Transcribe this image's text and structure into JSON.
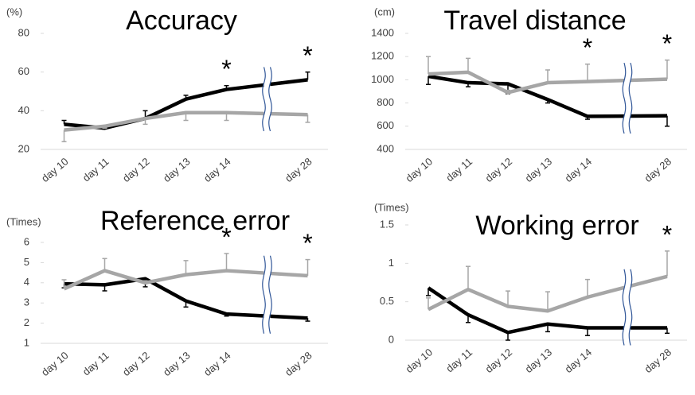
{
  "chart_data": [
    {
      "type": "line",
      "title": "Accuracy",
      "y_label": "(%)",
      "categories": [
        "day 10",
        "day 11",
        "day 12",
        "day 13",
        "day 14",
        "day 28"
      ],
      "axis_break_before_last": true,
      "ylim": [
        20,
        80
      ],
      "yticks": [
        20,
        40,
        60,
        80
      ],
      "series": [
        {
          "color": "#000000",
          "values": [
            33,
            31,
            36,
            46,
            51,
            56
          ],
          "errors": [
            2,
            1,
            4,
            2,
            2,
            4
          ],
          "error_side": "up"
        },
        {
          "color": "#a6a6a6",
          "values": [
            30,
            32,
            36,
            39,
            39,
            38
          ],
          "errors": [
            6,
            1,
            3,
            4,
            4,
            4
          ],
          "error_side": "down"
        }
      ],
      "annotations": [
        {
          "text": "*",
          "x": "day 14"
        },
        {
          "text": "*",
          "x": "day 28"
        }
      ]
    },
    {
      "type": "line",
      "title": "Travel distance",
      "y_label": "(cm)",
      "categories": [
        "day 10",
        "day 11",
        "day 12",
        "day 13",
        "day 14",
        "day 28"
      ],
      "axis_break_before_last": true,
      "ylim": [
        400,
        1400
      ],
      "yticks": [
        400,
        600,
        800,
        1000,
        1200,
        1400
      ],
      "series": [
        {
          "color": "#000000",
          "values": [
            1030,
            975,
            965,
            830,
            685,
            690
          ],
          "errors": [
            70,
            35,
            85,
            30,
            25,
            90
          ],
          "error_side": "down"
        },
        {
          "color": "#a6a6a6",
          "values": [
            1050,
            1065,
            890,
            975,
            985,
            1005
          ],
          "errors": [
            150,
            120,
            20,
            110,
            150,
            165
          ],
          "error_side": "up"
        }
      ],
      "annotations": [
        {
          "text": "*",
          "x": "day 14"
        },
        {
          "text": "*",
          "x": "day 28"
        }
      ]
    },
    {
      "type": "line",
      "title": "Reference error",
      "y_label": "(Times)",
      "categories": [
        "day 10",
        "day 11",
        "day 12",
        "day 13",
        "day 14",
        "day 28"
      ],
      "axis_break_before_last": true,
      "ylim": [
        1,
        6
      ],
      "yticks": [
        1,
        2,
        3,
        4,
        5,
        6
      ],
      "series": [
        {
          "color": "#000000",
          "values": [
            3.95,
            3.9,
            4.2,
            3.1,
            2.45,
            2.25
          ],
          "errors": [
            0.2,
            0.3,
            0.4,
            0.3,
            0.1,
            0.15
          ],
          "error_side": "down"
        },
        {
          "color": "#a6a6a6",
          "values": [
            3.7,
            4.6,
            4.0,
            4.4,
            4.6,
            4.35
          ],
          "errors": [
            0.45,
            0.6,
            0.1,
            0.7,
            0.85,
            0.8
          ],
          "error_side": "up"
        }
      ],
      "annotations": [
        {
          "text": "*",
          "x": "day 14"
        },
        {
          "text": "*",
          "x": "day 28"
        }
      ]
    },
    {
      "type": "line",
      "title": "Working error",
      "y_label": "(Times)",
      "categories": [
        "day 10",
        "day 11",
        "day 12",
        "day 13",
        "day 14",
        "day 28"
      ],
      "axis_break_before_last": true,
      "ylim": [
        0,
        1.5
      ],
      "yticks": [
        0,
        0.5,
        1,
        1.5
      ],
      "series": [
        {
          "color": "#000000",
          "values": [
            0.68,
            0.33,
            0.1,
            0.21,
            0.16,
            0.16
          ],
          "errors": [
            0.1,
            0.1,
            0.1,
            0.1,
            0.1,
            0.07
          ],
          "error_side": "down"
        },
        {
          "color": "#a6a6a6",
          "values": [
            0.4,
            0.66,
            0.44,
            0.38,
            0.56,
            0.83
          ],
          "errors": [
            0.15,
            0.3,
            0.2,
            0.25,
            0.23,
            0.33
          ],
          "error_side": "up"
        }
      ],
      "annotations": [
        {
          "text": "*",
          "x": "day 28"
        }
      ]
    }
  ]
}
